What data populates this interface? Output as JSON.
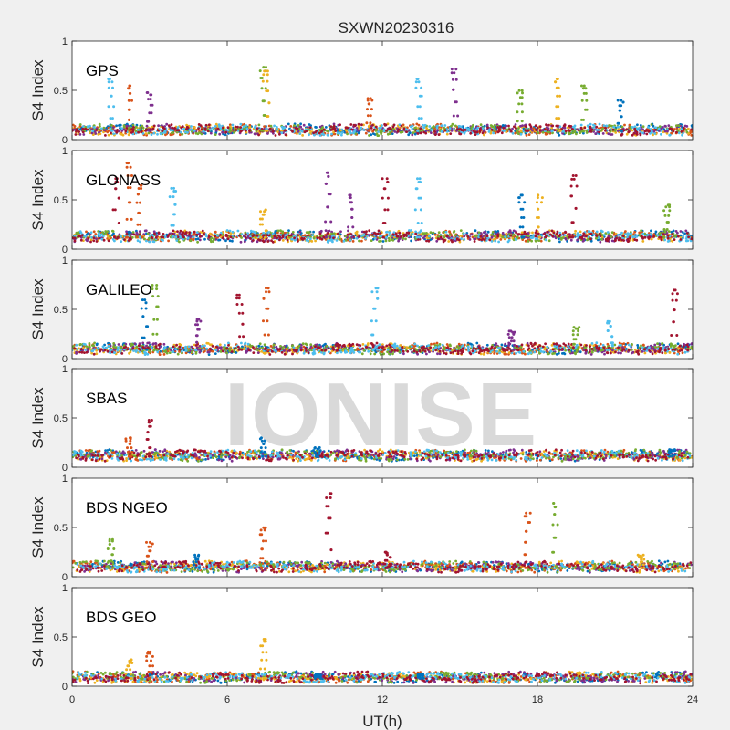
{
  "chart_data": {
    "type": "scatter",
    "title": "SXWN20230316",
    "xlabel": "UT(h)",
    "xlim": [
      0,
      24
    ],
    "xticks": [
      0,
      6,
      12,
      18,
      24
    ],
    "watermark": "IONISE",
    "colors": [
      "#0072BD",
      "#D95319",
      "#EDB120",
      "#7E2F8E",
      "#77AC30",
      "#4DBEEE",
      "#A2142F"
    ],
    "grid": false,
    "legend": "none",
    "panels": [
      {
        "label": "GPS",
        "ylabel": "S4 Index",
        "ylim": [
          0,
          1
        ],
        "yticks": [
          0,
          0.5,
          1
        ],
        "baseline": 0.09,
        "spikes": [
          {
            "t": 1.5,
            "peak": 0.62,
            "series": 5
          },
          {
            "t": 2.2,
            "peak": 0.55,
            "series": 1
          },
          {
            "t": 3.0,
            "peak": 0.48,
            "series": 3
          },
          {
            "t": 7.4,
            "peak": 0.74,
            "series": 4
          },
          {
            "t": 7.5,
            "peak": 0.7,
            "series": 2
          },
          {
            "t": 11.5,
            "peak": 0.42,
            "series": 1
          },
          {
            "t": 13.4,
            "peak": 0.62,
            "series": 5
          },
          {
            "t": 14.8,
            "peak": 0.72,
            "series": 3
          },
          {
            "t": 17.3,
            "peak": 0.5,
            "series": 4
          },
          {
            "t": 18.8,
            "peak": 0.62,
            "series": 2
          },
          {
            "t": 19.8,
            "peak": 0.55,
            "series": 4
          },
          {
            "t": 21.2,
            "peak": 0.4,
            "series": 0
          }
        ]
      },
      {
        "label": "GLONASS",
        "ylabel": "S4 Index",
        "ylim": [
          0,
          1
        ],
        "yticks": [
          0,
          0.5,
          1
        ],
        "baseline": 0.12,
        "spikes": [
          {
            "t": 1.7,
            "peak": 0.72,
            "series": 6
          },
          {
            "t": 2.2,
            "peak": 0.88,
            "series": 1
          },
          {
            "t": 2.6,
            "peak": 0.65,
            "series": 1
          },
          {
            "t": 3.9,
            "peak": 0.62,
            "series": 5
          },
          {
            "t": 7.4,
            "peak": 0.4,
            "series": 2
          },
          {
            "t": 9.9,
            "peak": 0.78,
            "series": 3
          },
          {
            "t": 10.8,
            "peak": 0.55,
            "series": 3
          },
          {
            "t": 12.1,
            "peak": 0.72,
            "series": 6
          },
          {
            "t": 13.4,
            "peak": 0.72,
            "series": 5
          },
          {
            "t": 17.4,
            "peak": 0.55,
            "series": 0
          },
          {
            "t": 18.1,
            "peak": 0.55,
            "series": 2
          },
          {
            "t": 19.4,
            "peak": 0.75,
            "series": 6
          },
          {
            "t": 23.0,
            "peak": 0.45,
            "series": 4
          }
        ]
      },
      {
        "label": "GALILEO",
        "ylabel": "S4 Index",
        "ylim": [
          0,
          1
        ],
        "yticks": [
          0,
          0.5,
          1
        ],
        "baseline": 0.09,
        "spikes": [
          {
            "t": 2.8,
            "peak": 0.6,
            "series": 0
          },
          {
            "t": 3.2,
            "peak": 0.75,
            "series": 4
          },
          {
            "t": 4.9,
            "peak": 0.4,
            "series": 3
          },
          {
            "t": 6.5,
            "peak": 0.65,
            "series": 6
          },
          {
            "t": 7.5,
            "peak": 0.72,
            "series": 1
          },
          {
            "t": 11.7,
            "peak": 0.72,
            "series": 5
          },
          {
            "t": 17.0,
            "peak": 0.28,
            "series": 3
          },
          {
            "t": 19.5,
            "peak": 0.32,
            "series": 4
          },
          {
            "t": 20.8,
            "peak": 0.38,
            "series": 5
          },
          {
            "t": 23.3,
            "peak": 0.7,
            "series": 6
          }
        ]
      },
      {
        "label": "SBAS",
        "ylabel": "S4 Index",
        "ylim": [
          0,
          1
        ],
        "yticks": [
          0,
          0.5,
          1
        ],
        "baseline": 0.11,
        "spikes": [
          {
            "t": 2.2,
            "peak": 0.3,
            "series": 1
          },
          {
            "t": 3.0,
            "peak": 0.48,
            "series": 6
          },
          {
            "t": 7.4,
            "peak": 0.3,
            "series": 0
          },
          {
            "t": 9.5,
            "peak": 0.2,
            "series": 0
          },
          {
            "t": 23.2,
            "peak": 0.18,
            "series": 0
          }
        ]
      },
      {
        "label": "BDS NGEO",
        "ylabel": "S4 Index",
        "ylim": [
          0,
          1
        ],
        "yticks": [
          0,
          0.5,
          1
        ],
        "baseline": 0.09,
        "spikes": [
          {
            "t": 1.5,
            "peak": 0.38,
            "series": 4
          },
          {
            "t": 3.0,
            "peak": 0.35,
            "series": 1
          },
          {
            "t": 4.8,
            "peak": 0.22,
            "series": 0
          },
          {
            "t": 7.4,
            "peak": 0.5,
            "series": 1
          },
          {
            "t": 9.9,
            "peak": 0.85,
            "series": 6
          },
          {
            "t": 12.2,
            "peak": 0.25,
            "series": 6
          },
          {
            "t": 17.6,
            "peak": 0.65,
            "series": 1
          },
          {
            "t": 18.7,
            "peak": 0.75,
            "series": 4
          },
          {
            "t": 22.0,
            "peak": 0.22,
            "series": 2
          }
        ]
      },
      {
        "label": "BDS GEO",
        "ylabel": "S4 Index",
        "ylim": [
          0,
          1
        ],
        "yticks": [
          0,
          0.5,
          1
        ],
        "baseline": 0.08,
        "spikes": [
          {
            "t": 2.2,
            "peak": 0.27,
            "series": 2
          },
          {
            "t": 3.0,
            "peak": 0.35,
            "series": 1
          },
          {
            "t": 7.4,
            "peak": 0.48,
            "series": 2
          },
          {
            "t": 9.5,
            "peak": 0.12,
            "series": 0
          },
          {
            "t": 13.5,
            "peak": 0.12,
            "series": 0
          }
        ]
      }
    ]
  }
}
